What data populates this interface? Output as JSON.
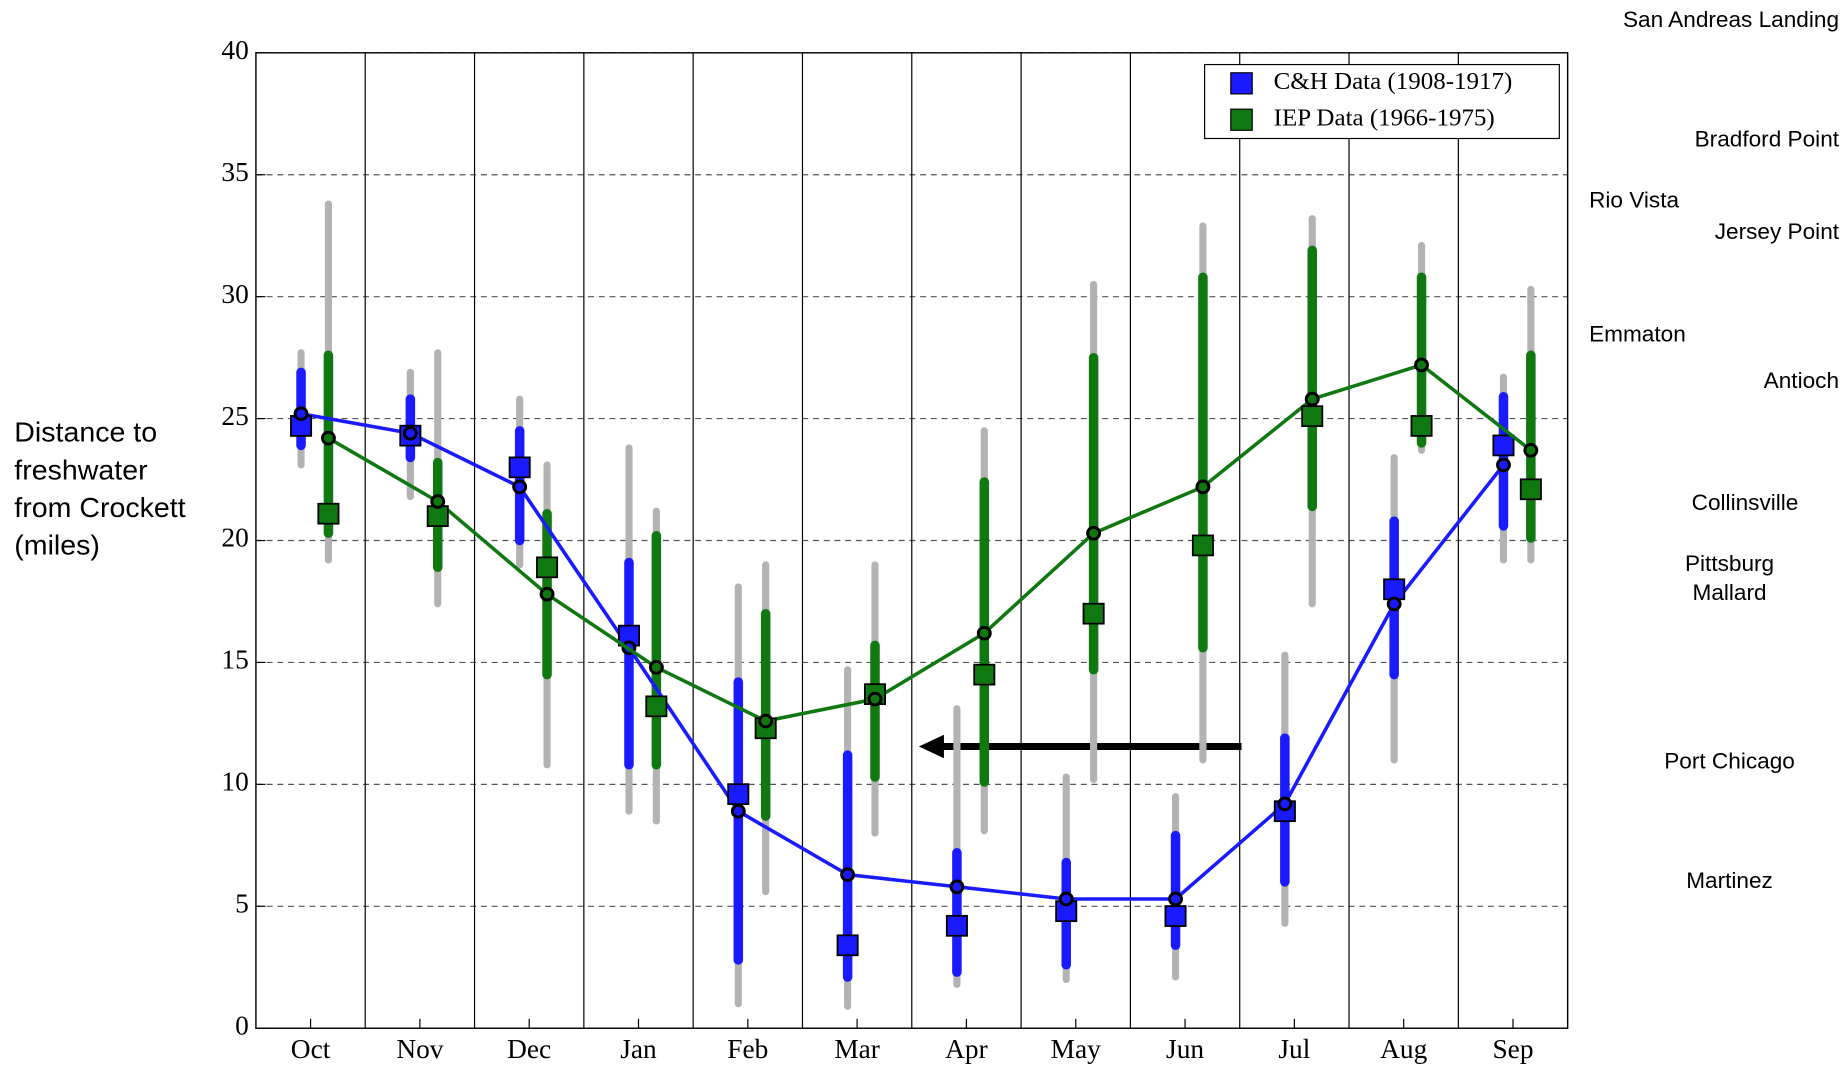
{
  "chart_data": {
    "type": "range",
    "categories": [
      "Oct",
      "Nov",
      "Dec",
      "Jan",
      "Feb",
      "Mar",
      "Apr",
      "May",
      "Jun",
      "Jul",
      "Aug",
      "Sep"
    ],
    "ylabel": [
      "Distance to",
      "freshwater",
      "from Crockett",
      "(miles)"
    ],
    "ylim": [
      0,
      40
    ],
    "yticks": [
      0,
      5,
      10,
      15,
      20,
      25,
      30,
      35,
      40
    ],
    "grid": true,
    "legend": "upper right",
    "extreme_color": "#b3b3b3",
    "series": [
      {
        "name": "C&H Data (1908-1917)",
        "color": "#1a1aff",
        "values": [
          25.2,
          24.4,
          22.2,
          15.6,
          8.9,
          6.3,
          5.8,
          5.3,
          5.3,
          9.2,
          17.4,
          23.1
        ],
        "median": [
          24.7,
          24.3,
          23.0,
          16.1,
          9.6,
          3.4,
          4.2,
          4.8,
          4.6,
          8.9,
          18.0,
          23.9
        ],
        "range_low": [
          23.9,
          23.4,
          20.0,
          10.8,
          2.8,
          2.1,
          2.3,
          2.6,
          3.4,
          6.0,
          14.5,
          20.6
        ],
        "range_high": [
          26.9,
          25.8,
          24.5,
          19.1,
          14.2,
          11.2,
          7.2,
          6.8,
          7.9,
          11.9,
          20.8,
          25.9
        ],
        "extreme_low": [
          23.1,
          21.8,
          19.0,
          8.9,
          1.0,
          0.9,
          1.8,
          2.0,
          2.1,
          4.3,
          11.0,
          19.2
        ],
        "extreme_high": [
          27.7,
          26.9,
          25.8,
          23.8,
          18.1,
          14.7,
          13.1,
          10.3,
          9.5,
          15.3,
          23.4,
          26.7
        ]
      },
      {
        "name": "IEP Data (1966-1975)",
        "color": "#107810",
        "values": [
          24.2,
          21.6,
          17.8,
          14.8,
          12.6,
          13.5,
          16.2,
          20.3,
          22.2,
          25.8,
          27.2,
          23.7
        ],
        "median": [
          21.1,
          21.0,
          18.9,
          13.2,
          12.3,
          13.7,
          14.5,
          17.0,
          19.8,
          25.1,
          24.7,
          22.1
        ],
        "range_low": [
          20.3,
          18.9,
          14.5,
          10.8,
          8.7,
          10.3,
          10.1,
          14.7,
          15.6,
          21.4,
          24.0,
          20.1
        ],
        "range_high": [
          27.6,
          23.2,
          21.1,
          20.2,
          17.0,
          15.7,
          22.4,
          27.5,
          30.8,
          31.9,
          30.8,
          27.6
        ],
        "extreme_low": [
          19.2,
          17.4,
          10.8,
          8.5,
          5.6,
          8.0,
          8.1,
          10.2,
          11.0,
          17.4,
          23.7,
          19.2
        ],
        "extreme_high": [
          33.8,
          27.7,
          23.1,
          21.2,
          19.0,
          19.0,
          24.5,
          30.5,
          32.9,
          33.2,
          32.1,
          30.3
        ]
      }
    ],
    "annotations": [
      {
        "value": 41.3,
        "label": "San Andreas Landing"
      },
      {
        "value": 36.4,
        "label": "Bradford Point"
      },
      {
        "value": 33.9,
        "label": "Rio Vista"
      },
      {
        "value": 32.6,
        "label": "Jersey Point"
      },
      {
        "value": 28.4,
        "label": "Emmaton"
      },
      {
        "value": 26.5,
        "label": "Antioch"
      },
      {
        "value": 21.5,
        "label": "Collinsville"
      },
      {
        "value": 19.0,
        "label": "Pittsburg"
      },
      {
        "value": 17.8,
        "label": "Mallard"
      },
      {
        "value": 10.9,
        "label": "Port Chicago"
      },
      {
        "value": 6.0,
        "label": "Martinez"
      }
    ]
  }
}
